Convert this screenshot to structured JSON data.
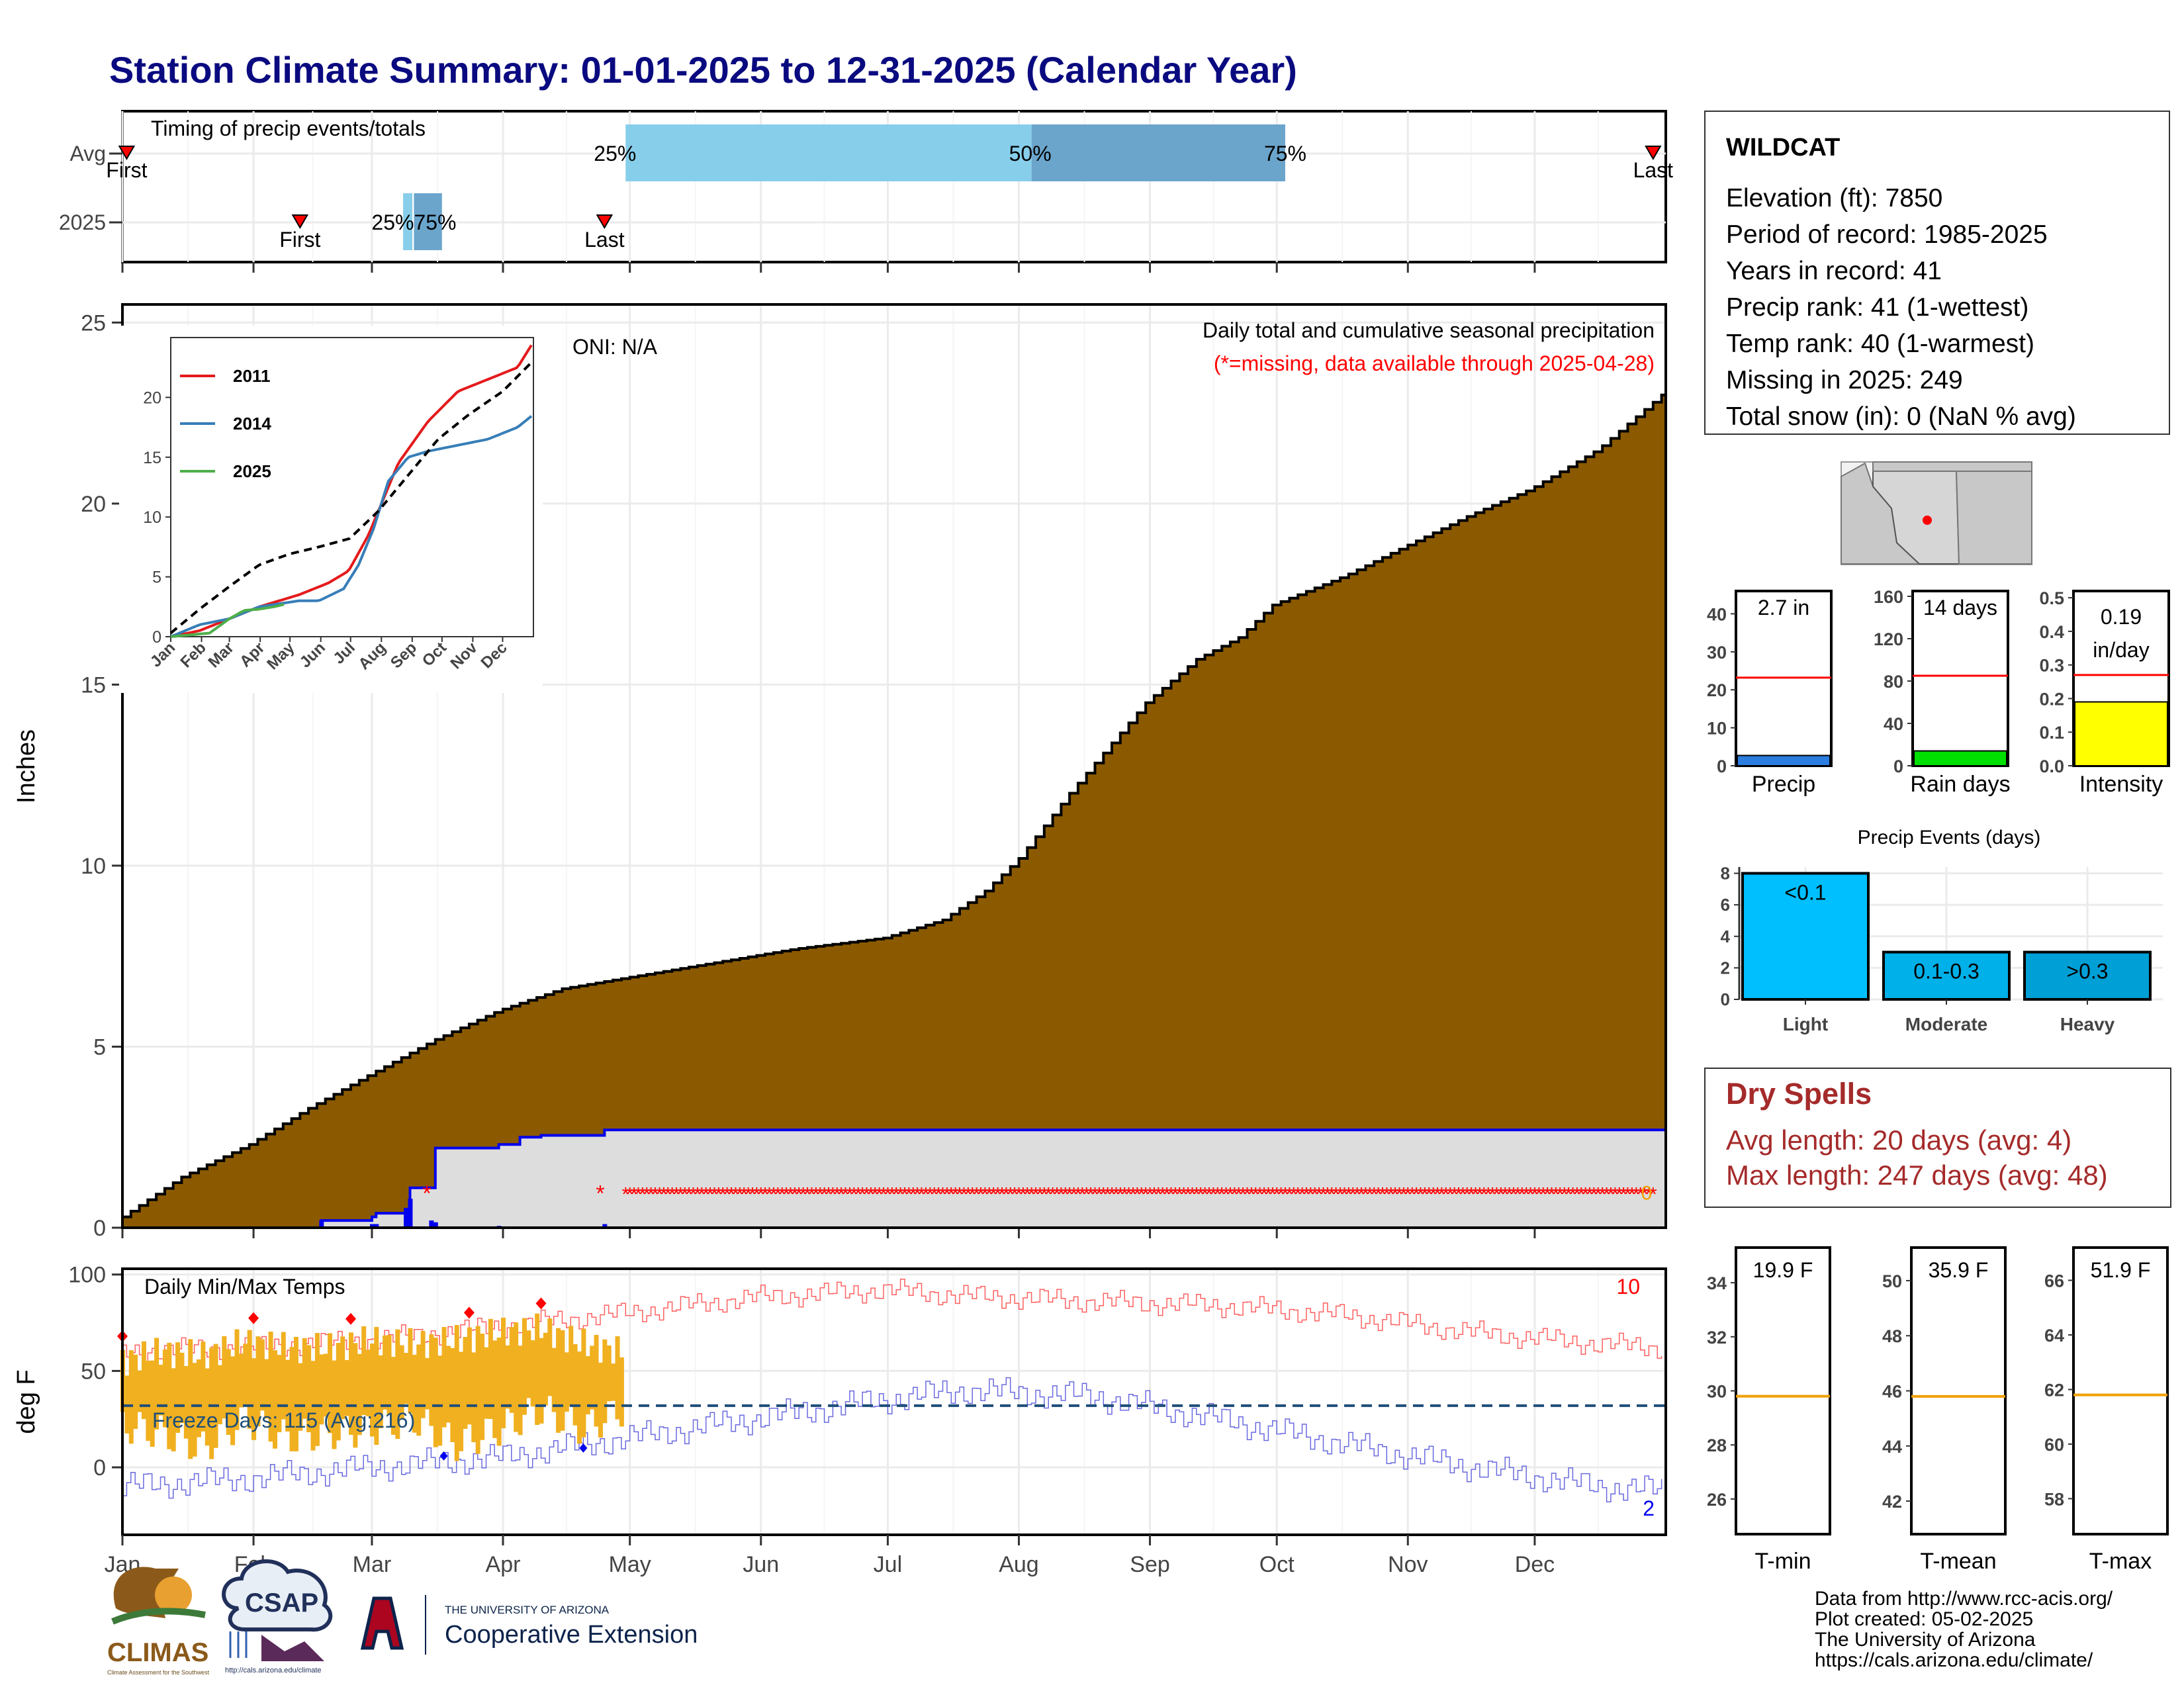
{
  "title": "Station Climate Summary: 01-01-2025 to 12-31-2025 (Calendar Year)",
  "months": [
    "Jan",
    "Feb",
    "Mar",
    "Apr",
    "May",
    "Jun",
    "Jul",
    "Aug",
    "Sep",
    "Oct",
    "Nov",
    "Dec"
  ],
  "colors": {
    "title": "#0a0a80",
    "cumfill": "#8b5a00",
    "gray": "#dddddd",
    "blue": "#0000ee",
    "missing": "#ff0000",
    "gold": "#f0b020",
    "tmax": "#ff6060",
    "tmin": "#6a6ae0",
    "freeze": "#1f4e79",
    "spell": "#a52a2a"
  },
  "timing": {
    "label": "Timing of precip events/totals",
    "rows": [
      "Avg",
      "2025"
    ],
    "avg": {
      "first_doy": 2,
      "last_doy": 363,
      "first_label": "First",
      "last_label": "Last",
      "q25_doy": 120,
      "q50_doy": 216,
      "q75_doy": 276,
      "q25_label": "25%",
      "q50_label": "50%",
      "q75_label": "75%"
    },
    "y2025": {
      "first_doy": 43,
      "last_doy": 115,
      "first_label": "First",
      "last_label": "Last",
      "q25_doy": 68,
      "q50_doy": 69,
      "q75_doy": 75,
      "overlap_label": "25%75%"
    }
  },
  "chart_data": [
    {
      "type": "area",
      "title": "Daily total and cumulative seasonal precipitation",
      "subtitle": "(*=missing, data available through 2025-04-28)",
      "annotation": "ONI: N/A",
      "ylabel": "Inches",
      "ylim": [
        0,
        25.5
      ],
      "yticks": [
        0,
        5,
        10,
        15,
        20,
        25
      ],
      "x_unit": "day of year",
      "avg_cumulative": {
        "x": [
          1,
          15,
          31,
          45,
          59,
          75,
          90,
          105,
          120,
          140,
          160,
          181,
          195,
          205,
          213,
          225,
          243,
          255,
          265,
          273,
          290,
          304,
          320,
          334,
          350,
          365
        ],
        "y": [
          0.3,
          1.4,
          2.3,
          3.3,
          4.2,
          5.2,
          6.0,
          6.6,
          6.9,
          7.3,
          7.7,
          8.0,
          8.5,
          9.3,
          10.2,
          12.0,
          14.5,
          15.7,
          16.3,
          17.2,
          18.0,
          18.8,
          19.7,
          20.4,
          21.5,
          23.0
        ]
      },
      "cum_2025": {
        "x": [
          1,
          45,
          48,
          60,
          61,
          68,
          69,
          75,
          90,
          95,
          100,
          115,
          365
        ],
        "y": [
          0,
          0,
          0.2,
          0.3,
          0.4,
          0.5,
          1.1,
          2.2,
          2.3,
          2.5,
          2.55,
          2.7,
          2.7
        ]
      },
      "missing_marker": {
        "symbol": "*",
        "x_start": 120,
        "x_end": 363,
        "value": 1.0,
        "isolated": [
          73,
          114
        ]
      },
      "missing_count_label": "0",
      "inset": {
        "type": "line",
        "ylim": [
          0,
          25
        ],
        "yticks": [
          0,
          5,
          10,
          15,
          20
        ],
        "xticks": [
          "Jan",
          "Feb",
          "Mar",
          "Apr",
          "May",
          "Jun",
          "Jul",
          "Aug",
          "Sep",
          "Oct",
          "Nov",
          "Dec"
        ],
        "series": [
          {
            "name": "2011",
            "color": "#e41a1c",
            "x": [
              1,
              30,
              60,
              90,
              130,
              160,
              180,
              200,
              215,
              230,
              260,
              290,
              320,
              350,
              365
            ],
            "y": [
              0,
              0.5,
              1.5,
              2.5,
              3.5,
              4.5,
              5.5,
              8.5,
              11.5,
              14.5,
              18,
              20.5,
              21.5,
              22.5,
              24.5
            ]
          },
          {
            "name": "2014",
            "color": "#377eb8",
            "x": [
              1,
              30,
              60,
              90,
              130,
              150,
              175,
              190,
              205,
              220,
              240,
              260,
              290,
              320,
              350,
              365
            ],
            "y": [
              0,
              1,
              1.5,
              2.5,
              3.0,
              3.0,
              4.0,
              6,
              9,
              13,
              15,
              15.5,
              16,
              16.5,
              17.5,
              18.5
            ]
          },
          {
            "name": "2025",
            "color": "#4daf4a",
            "x": [
              1,
              40,
              60,
              75,
              90,
              105,
              115
            ],
            "y": [
              0,
              0.3,
              1.5,
              2.2,
              2.3,
              2.5,
              2.7
            ]
          },
          {
            "name": "avg",
            "color": "#000000",
            "dash": true,
            "x": [
              1,
              30,
              60,
              90,
              120,
              150,
              181,
              210,
              240,
              270,
              300,
              335,
              365
            ],
            "y": [
              0.3,
              2.3,
              4.2,
              6,
              6.9,
              7.5,
              8.2,
              10.5,
              13.5,
              16.5,
              18.5,
              20.5,
              23
            ]
          }
        ]
      }
    },
    {
      "type": "line",
      "title": "Daily Min/Max Temps",
      "ylabel": "deg F",
      "ylim": [
        -35,
        103
      ],
      "yticks": [
        0,
        50,
        100
      ],
      "freeze_label": "Freeze Days: 115 (Avg:216)",
      "freeze_line": 32,
      "record_high_count": "10",
      "record_low_count": "2",
      "series": [
        {
          "name": "avg max",
          "x": [
            1,
            30,
            60,
            90,
            120,
            150,
            181,
            200,
            230,
            260,
            290,
            320,
            350,
            365
          ],
          "y": [
            60,
            62,
            66,
            73,
            80,
            88,
            92,
            89,
            86,
            84,
            79,
            70,
            64,
            62
          ]
        },
        {
          "name": "avg min",
          "x": [
            1,
            30,
            60,
            90,
            120,
            150,
            181,
            200,
            230,
            260,
            290,
            320,
            350,
            365
          ],
          "y": [
            -10,
            -6,
            0,
            5,
            15,
            25,
            35,
            40,
            37,
            25,
            12,
            0,
            -10,
            -12
          ]
        }
      ],
      "obs_2025": {
        "x": [
          1,
          10,
          20,
          30,
          40,
          50,
          60,
          70,
          80,
          90,
          100,
          110,
          119
        ],
        "max": [
          55,
          60,
          58,
          65,
          62,
          62,
          66,
          64,
          66,
          70,
          72,
          64,
          60
        ],
        "min": [
          22,
          18,
          10,
          25,
          15,
          18,
          20,
          25,
          12,
          20,
          30,
          20,
          30
        ]
      },
      "record_highs_x": [
        1,
        32,
        55,
        83,
        100
      ],
      "record_lows_x": [
        77,
        110
      ]
    },
    {
      "type": "bar",
      "title": "Precip",
      "categories": [
        "Precip"
      ],
      "values": [
        2.7
      ],
      "value_label": "2.7 in",
      "avg": 23.2,
      "ylim": [
        0,
        46
      ],
      "yticks": [
        0,
        10,
        20,
        30,
        40
      ]
    },
    {
      "type": "bar",
      "title": "Rain days",
      "categories": [
        "Rain days"
      ],
      "values": [
        14
      ],
      "value_label": "14 days",
      "avg": 85,
      "ylim": [
        0,
        165
      ],
      "yticks": [
        0,
        40,
        80,
        120,
        160
      ]
    },
    {
      "type": "bar",
      "title": "Intensity",
      "categories": [
        "Intensity"
      ],
      "values": [
        0.19
      ],
      "value_label": [
        "0.19",
        "in/day"
      ],
      "avg": 0.27,
      "ylim": [
        0,
        0.52
      ],
      "yticks": [
        0.0,
        0.1,
        0.2,
        0.3,
        0.4,
        0.5
      ]
    },
    {
      "type": "bar",
      "title": "Precip Events (days)",
      "categories": [
        "Light",
        "Moderate",
        "Heavy"
      ],
      "values": [
        8,
        3,
        3
      ],
      "bar_labels": [
        "<0.1",
        "0.1-0.3",
        ">0.3"
      ],
      "ylim": [
        0,
        8.4
      ],
      "yticks": [
        0,
        2,
        4,
        6,
        8
      ]
    },
    {
      "type": "bar",
      "title": "T-min",
      "categories": [
        "T-min"
      ],
      "value_label": "19.9 F",
      "avg": 29.8,
      "ylim": [
        24.7,
        35.3
      ],
      "yticks": [
        26,
        28,
        30,
        32,
        34
      ]
    },
    {
      "type": "bar",
      "title": "T-mean",
      "categories": [
        "T-mean"
      ],
      "value_label": "35.9 F",
      "avg": 45.8,
      "ylim": [
        40.8,
        51.2
      ],
      "yticks": [
        42,
        44,
        46,
        48,
        50
      ]
    },
    {
      "type": "bar",
      "title": "T-max",
      "categories": [
        "T-max"
      ],
      "value_label": "51.9 F",
      "avg": 61.8,
      "ylim": [
        56.7,
        67.2
      ],
      "yticks": [
        58,
        60,
        62,
        64,
        66
      ]
    }
  ],
  "station": {
    "name": "WILDCAT",
    "lines": [
      "Elevation (ft): 7850",
      "Period of record: 1985-2025",
      "Years in record: 41",
      "Precip rank: 41 (1-wettest)",
      "Temp rank: 40 (1-warmest)",
      "Missing in 2025: 249",
      "Total snow (in): 0 (NaN % avg)"
    ]
  },
  "dry_spells": {
    "title": "Dry Spells",
    "avg_line": "Avg length: 20 days (avg: 4)",
    "max_line": "Max length: 247 days (avg: 48)"
  },
  "footer": {
    "lines": [
      "Data from http://www.rcc-acis.org/",
      "Plot created: 05-02-2025",
      "The University of Arizona",
      "https://cals.arizona.edu/climate/"
    ],
    "climas": "CLIMAS",
    "climas_sub": "Climate Assessment for the Southwest",
    "csap": "CSAP",
    "csap_url": "http://cals.arizona.edu/climate",
    "ua_top": "THE UNIVERSITY OF ARIZONA",
    "ua_bottom": "Cooperative Extension"
  }
}
